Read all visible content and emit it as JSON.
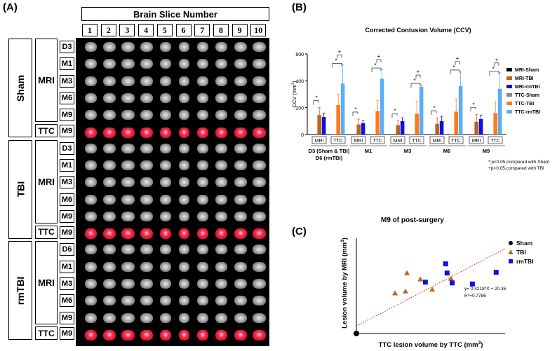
{
  "panelA": {
    "label": "(A)",
    "header": "Brain Slice Number",
    "slice_numbers": [
      "1",
      "2",
      "3",
      "4",
      "5",
      "6",
      "7",
      "8",
      "9",
      "10"
    ],
    "groups": [
      {
        "name": "Sham",
        "method": "MRI",
        "rows": [
          "D3",
          "M1",
          "M3",
          "M6",
          "M9"
        ],
        "ttc": "TTC",
        "ttc_row": "M9"
      },
      {
        "name": "TBI",
        "method": "MRI",
        "rows": [
          "D3",
          "M1",
          "M3",
          "M6",
          "M9"
        ],
        "ttc": "TTC",
        "ttc_row": "M9"
      },
      {
        "name": "rmTBI",
        "method": "MRI",
        "rows": [
          "D6",
          "M1",
          "M3",
          "M6",
          "M9"
        ],
        "ttc": "TTC",
        "ttc_row": "M9"
      }
    ]
  },
  "panelB": {
    "label": "(B)",
    "title": "Corrected Contusion Volume (CCV)",
    "ylabel_main": "CCV (mm",
    "ylabel_sup": "3",
    "ylabel_end": ")",
    "notes": [
      "*:p<0.05,compared with Sham",
      "+p<0.05,compared with TBI"
    ],
    "chart_data": {
      "type": "bar",
      "ylim": [
        0,
        600
      ],
      "yticks": [
        "0",
        "200",
        "400",
        "600"
      ],
      "timepoints": [
        "D3 (Sham & TBI)",
        "M1",
        "M3",
        "M6",
        "M9"
      ],
      "timepoint_sub": "D6 (rmTBI)",
      "methods": [
        "MRI",
        "TTC"
      ],
      "series": [
        {
          "name": "MRI-Sham",
          "color": "#000000",
          "values": [
            2,
            2,
            2,
            2,
            2
          ]
        },
        {
          "name": "MRI-TBI",
          "color": "#b8651e",
          "values": [
            145,
            75,
            70,
            80,
            95
          ]
        },
        {
          "name": "MRI-rmTBI",
          "color": "#1010e0",
          "values": [
            130,
            85,
            100,
            100,
            115
          ]
        },
        {
          "name": "TTC-Sham",
          "color": "#8a8a8a",
          "values": [
            2,
            2,
            2,
            2,
            2
          ]
        },
        {
          "name": "TTC-TBI",
          "color": "#ff7a1a",
          "values": [
            220,
            175,
            155,
            170,
            160
          ]
        },
        {
          "name": "TTC-rmTBI",
          "color": "#5aaef5",
          "values": [
            380,
            415,
            355,
            360,
            340
          ]
        }
      ],
      "errors": {
        "MRI-TBI": [
          55,
          40,
          35,
          45,
          55
        ],
        "MRI-rmTBI": [
          30,
          20,
          25,
          35,
          30
        ],
        "TTC-TBI": [
          80,
          80,
          90,
          95,
          85
        ],
        "TTC-rmTBI": [
          140,
          70,
          15,
          110,
          120
        ]
      },
      "sig_star": "*",
      "sig_plus": "+"
    }
  },
  "panelC": {
    "label": "(C)",
    "title": "M9 of post-surgery",
    "xlabel": "TTC lesion volume by TTC (mm",
    "xlabel_sup": "3",
    "xlabel_end": ")",
    "ylabel": "Lesion volume by MRI (mm",
    "ylabel_sup": "3",
    "ylabel_end": ")",
    "equation": "y= 0.4218*X + 20.36",
    "r2_label": "R",
    "r2_sup": "2",
    "r2_value": "=0.7786",
    "chart_data": {
      "type": "scatter",
      "xlim": [
        0,
        500
      ],
      "ylim": [
        0,
        260
      ],
      "series": [
        {
          "name": "Sham",
          "color": "#000000",
          "marker": "circle",
          "points": [
            [
              0,
              0
            ]
          ]
        },
        {
          "name": "TBI",
          "color": "#b8651e",
          "marker": "triangle",
          "points": [
            [
              130,
              110
            ],
            [
              165,
              115
            ],
            [
              170,
              165
            ],
            [
              215,
              148
            ],
            [
              255,
              120
            ],
            [
              318,
              150
            ]
          ]
        },
        {
          "name": "rmTBI",
          "color": "#1010e0",
          "marker": "square",
          "points": [
            [
              232,
              140
            ],
            [
              300,
              190
            ],
            [
              305,
              165
            ],
            [
              322,
              138
            ],
            [
              390,
              135
            ],
            [
              470,
              167
            ]
          ]
        }
      ],
      "fit": {
        "slope": 0.4218,
        "intercept": 20.36
      }
    }
  }
}
